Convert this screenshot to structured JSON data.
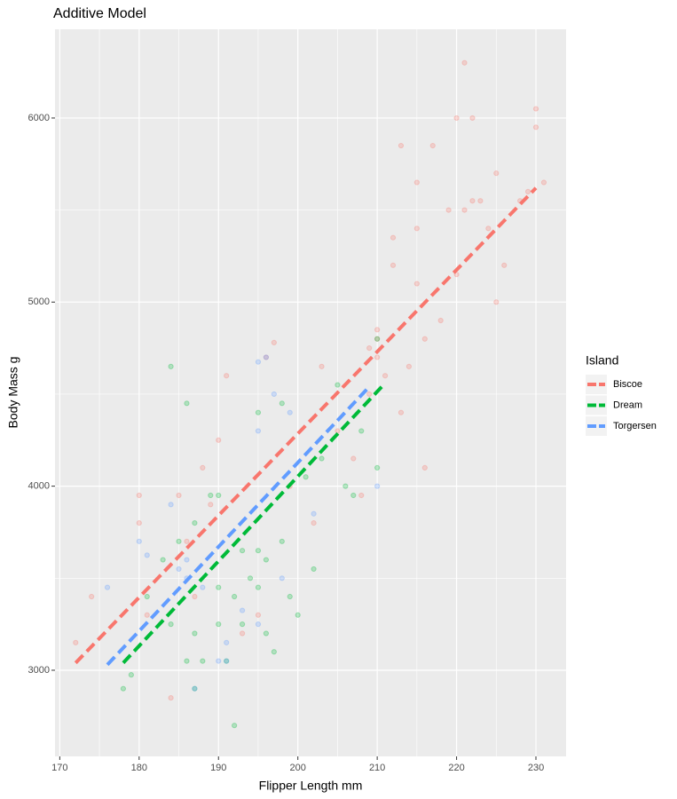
{
  "chart_data": {
    "type": "scatter",
    "title": "Additive Model",
    "x_label": "Flipper Length mm",
    "y_label": "Body Mass g",
    "legend_title": "Island",
    "legend_position": "right",
    "xlim": [
      169.4,
      233.8
    ],
    "ylim": [
      2532,
      6482
    ],
    "xticks": [
      170,
      180,
      190,
      200,
      210,
      220,
      230
    ],
    "yticks": [
      3000,
      4000,
      5000,
      6000
    ],
    "grid": true,
    "series": [
      {
        "name": "Biscoe",
        "color": "#F8766D",
        "x": [
          172,
          174,
          180,
          180,
          181,
          184,
          185,
          186,
          187,
          188,
          189,
          190,
          191,
          193,
          195,
          196,
          197,
          199,
          202,
          203,
          205,
          207,
          208,
          209,
          210,
          210,
          211,
          212,
          213,
          213,
          214,
          215,
          215,
          216,
          216,
          217,
          218,
          219,
          220,
          220,
          221,
          222,
          222,
          223,
          224,
          225,
          225,
          226,
          228,
          229,
          230,
          230,
          231,
          221,
          215,
          212,
          210,
          209
        ],
        "values": [
          3150,
          3400,
          3950,
          3800,
          3300,
          2850,
          3950,
          3700,
          3400,
          4100,
          3900,
          4250,
          4600,
          3200,
          3300,
          4700,
          4780,
          4000,
          3800,
          4650,
          4300,
          4150,
          3950,
          4750,
          4850,
          4700,
          4600,
          5200,
          4400,
          5850,
          4650,
          5650,
          5100,
          4800,
          4100,
          5850,
          4900,
          5500,
          6000,
          5150,
          6300,
          6000,
          5550,
          5550,
          5400,
          5000,
          5700,
          5200,
          5550,
          5600,
          6050,
          5950,
          5650,
          5500,
          5400,
          5350,
          4800,
          4500
        ],
        "fit_x": [
          172,
          230
        ],
        "fit_values": [
          3040,
          5620
        ]
      },
      {
        "name": "Dream",
        "color": "#00BA38",
        "x": [
          178,
          179,
          181,
          183,
          184,
          185,
          186,
          186,
          187,
          188,
          189,
          190,
          190,
          191,
          192,
          192,
          193,
          194,
          195,
          195,
          196,
          196,
          197,
          198,
          199,
          200,
          201,
          202,
          203,
          205,
          206,
          207,
          208,
          210,
          210,
          187,
          190,
          193,
          195,
          198,
          184,
          187
        ],
        "values": [
          2900,
          2975,
          3400,
          3600,
          3250,
          3700,
          4450,
          3050,
          2900,
          3050,
          3950,
          3450,
          3950,
          3050,
          2700,
          3400,
          3250,
          3500,
          4400,
          3650,
          3600,
          3200,
          3100,
          4450,
          3400,
          3300,
          4050,
          3550,
          4150,
          4550,
          4000,
          3950,
          4300,
          4800,
          4100,
          3200,
          3250,
          3650,
          3450,
          3700,
          4650,
          3800
        ],
        "fit_x": [
          178,
          211
        ],
        "fit_values": [
          3040,
          4560
        ]
      },
      {
        "name": "Torgersen",
        "color": "#619CFF",
        "x": [
          176,
          180,
          181,
          184,
          185,
          186,
          187,
          188,
          190,
          191,
          193,
          195,
          195,
          196,
          197,
          198,
          199,
          202,
          210,
          195,
          191,
          186
        ],
        "values": [
          3450,
          3700,
          3625,
          3900,
          3550,
          3500,
          2900,
          3450,
          3050,
          3050,
          3325,
          4675,
          3250,
          4700,
          4500,
          3500,
          4400,
          3850,
          4000,
          4300,
          3150,
          3600
        ],
        "fit_x": [
          176,
          209
        ],
        "fit_values": [
          3030,
          4540
        ]
      }
    ]
  }
}
